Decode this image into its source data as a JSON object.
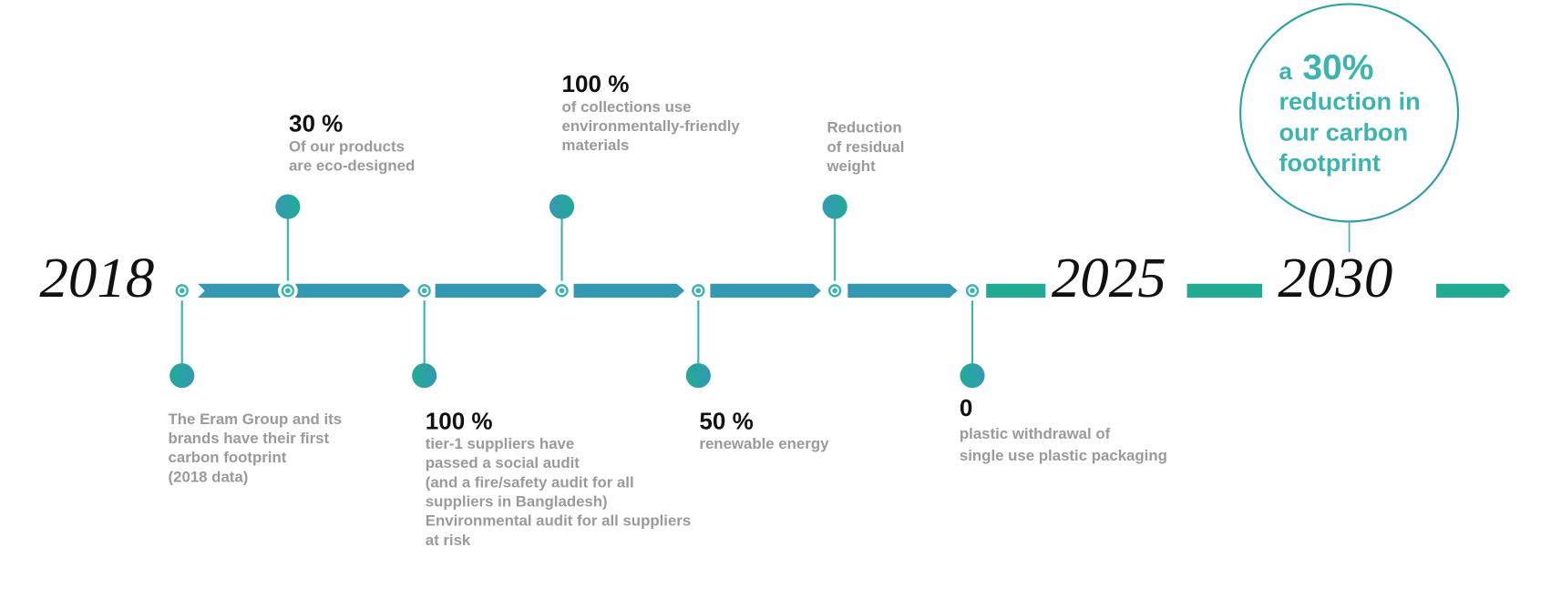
{
  "colors": {
    "blue": "#3399b3",
    "green": "#22ab94",
    "teal": "#3cb5ae",
    "text_gray": "#9a9a9a"
  },
  "years": {
    "start": "2018",
    "mid": "2025",
    "end": "2030"
  },
  "milestones": [
    {
      "position": "below",
      "heading": "",
      "lines": [
        "The Eram Group and its",
        "brands have their first",
        "carbon footprint",
        "(2018 data)"
      ]
    },
    {
      "position": "above",
      "heading": "30 %",
      "lines": [
        "Of our products",
        "are eco-designed"
      ]
    },
    {
      "position": "below",
      "heading": "100 %",
      "lines": [
        "tier-1 suppliers have",
        "passed a social audit",
        "(and a fire/safety audit for all",
        "suppliers in Bangladesh)",
        "Environmental audit for all suppliers",
        "at risk"
      ]
    },
    {
      "position": "above",
      "heading": "100 %",
      "lines": [
        "of collections use",
        "environmentally-friendly",
        "materials"
      ]
    },
    {
      "position": "below",
      "heading": "50 %",
      "lines": [
        "renewable energy"
      ]
    },
    {
      "position": "above",
      "heading": "",
      "lines": [
        "Reduction",
        "of residual",
        "weight"
      ]
    },
    {
      "position": "below",
      "heading": "0",
      "lines": [
        "plastic withdrawal of",
        "single use plastic packaging"
      ]
    }
  ],
  "goal": {
    "prefix": "a",
    "value": "30%",
    "lines": [
      "reduction in",
      "our carbon",
      "footprint"
    ]
  }
}
